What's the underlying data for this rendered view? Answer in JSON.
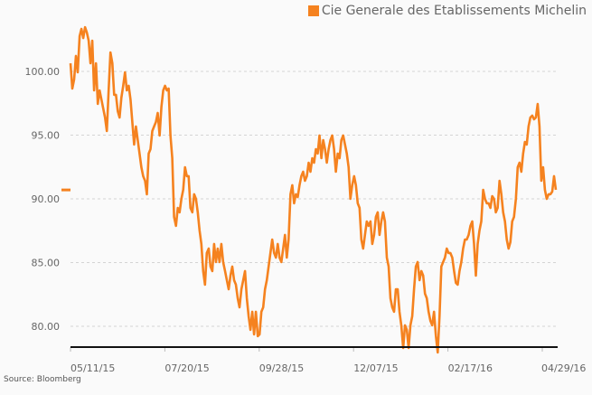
{
  "chart_data": {
    "type": "line",
    "title": "",
    "xlabel": "",
    "ylabel": "",
    "legend": {
      "position": "top-right",
      "entries": [
        "Cie Generale des Etablissements Michelin"
      ]
    },
    "series": [
      {
        "name": "Cie Generale des Etablissements Michelin",
        "color": "#f5821f",
        "last_value": 90.7,
        "values": [
          100.64,
          98.65,
          99.36,
          101.21,
          99.93,
          102.77,
          103.33,
          102.62,
          103.47,
          103.05,
          102.41,
          100.64,
          102.41,
          98.51,
          100.64,
          97.45,
          98.51,
          97.8,
          97.09,
          96.38,
          95.32,
          98.51,
          101.49,
          100.64,
          98.16,
          98.16,
          96.88,
          96.38,
          97.94,
          98.87,
          99.93,
          98.51,
          98.87,
          97.8,
          96.03,
          94.26,
          95.68,
          94.61,
          93.55,
          92.48,
          91.78,
          91.42,
          90.36,
          93.55,
          93.9,
          95.32,
          95.68,
          96.03,
          96.74,
          94.97,
          97.23,
          98.51,
          98.87,
          98.51,
          98.65,
          94.97,
          93.19,
          88.58,
          87.88,
          89.29,
          88.94,
          90.0,
          90.71,
          92.48,
          91.78,
          91.78,
          89.29,
          88.94,
          90.36,
          90.0,
          88.94,
          87.52,
          86.46,
          84.33,
          83.27,
          85.75,
          86.1,
          84.69,
          84.33,
          86.46,
          85.04,
          86.1,
          85.04,
          86.46,
          85.04,
          84.33,
          83.62,
          82.91,
          83.98,
          84.69,
          83.62,
          83.27,
          82.2,
          81.49,
          82.91,
          83.62,
          84.33,
          82.2,
          80.79,
          79.72,
          81.14,
          79.37,
          81.14,
          79.23,
          79.37,
          81.14,
          81.49,
          82.91,
          83.62,
          84.69,
          85.75,
          86.81,
          85.75,
          85.39,
          86.46,
          85.39,
          85.04,
          86.1,
          87.17,
          85.39,
          86.81,
          90.36,
          91.07,
          89.65,
          90.36,
          90.14,
          91.07,
          91.78,
          92.13,
          91.42,
          91.78,
          92.84,
          92.13,
          93.19,
          92.84,
          93.9,
          93.55,
          94.97,
          93.19,
          94.61,
          93.9,
          92.84,
          93.9,
          94.61,
          94.97,
          93.9,
          92.13,
          93.55,
          93.19,
          94.61,
          94.97,
          94.26,
          93.55,
          92.48,
          90.0,
          91.07,
          91.78,
          91.07,
          89.65,
          89.29,
          86.81,
          86.1,
          87.17,
          88.23,
          87.88,
          88.23,
          86.46,
          87.17,
          88.58,
          88.94,
          87.17,
          88.23,
          88.94,
          88.23,
          85.39,
          84.69,
          82.2,
          81.49,
          81.14,
          82.91,
          82.91,
          81.14,
          80.08,
          78.3,
          80.08,
          79.72,
          78.3,
          80.08,
          80.79,
          82.91,
          84.69,
          85.04,
          83.62,
          84.33,
          83.98,
          82.56,
          82.2,
          81.14,
          80.43,
          80.08,
          81.14,
          79.23,
          77.95,
          80.79,
          84.69,
          85.04,
          85.39,
          86.1,
          85.75,
          85.75,
          85.39,
          84.33,
          83.41,
          83.27,
          84.33,
          85.04,
          86.1,
          86.81,
          86.81,
          87.17,
          87.88,
          88.23,
          86.46,
          83.98,
          86.46,
          87.52,
          88.23,
          90.71,
          90.0,
          89.65,
          89.65,
          89.29,
          90.21,
          90.0,
          88.94,
          89.29,
          91.42,
          90.36,
          88.94,
          88.23,
          86.81,
          86.1,
          86.6,
          88.23,
          88.58,
          90.0,
          92.48,
          92.84,
          92.13,
          93.55,
          94.47,
          94.26,
          95.68,
          96.38,
          96.53,
          96.24,
          96.38,
          97.45,
          95.68,
          91.42,
          92.48,
          90.71,
          90.0,
          90.36,
          90.36,
          90.57,
          91.78,
          90.71
        ]
      }
    ],
    "x_tick_labels": [
      "05/11/15",
      "07/20/15",
      "09/28/15",
      "12/07/15",
      "02/17/16",
      "04/29/16"
    ],
    "y_ticks": [
      100,
      95,
      90,
      85,
      80
    ],
    "y_tick_labels": [
      "100.00",
      "95.00",
      "90.00",
      "85.00",
      "80.00"
    ],
    "ylim": [
      78.4,
      105.6
    ],
    "grid": true
  },
  "source": "Source: Bloomberg"
}
